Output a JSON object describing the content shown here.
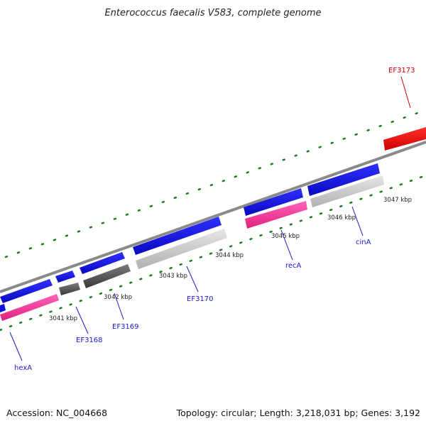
{
  "title": "Enterococcus faecalis V583, complete genome",
  "footer": {
    "accession": "Accession: NC_004668",
    "summary": "Topology: circular; Length: 3,218,031 bp; Genes: 3,192"
  },
  "scale_labels": [
    "3041 kbp",
    "3042 kbp",
    "3043 kbp",
    "3044 kbp",
    "3045 kbp",
    "3046 kbp",
    "3047 kbp"
  ],
  "gene_labels": [
    "hexA",
    "EF3168",
    "EF3169",
    "EF3170",
    "recA",
    "cinA",
    "EF3173"
  ],
  "colors": {
    "forward_cds": "#1212e8",
    "reverse_highlight": "#ff3a9e",
    "reverse_gray": "#c4c4c4",
    "reverse_dark": "#5e5e5e",
    "selected_gene": "#ee1111",
    "backbone": "#8a8a8a",
    "ticks": "#1c7a1c",
    "label_blue": "#1a1acc",
    "label_red": "#cc0000"
  }
}
